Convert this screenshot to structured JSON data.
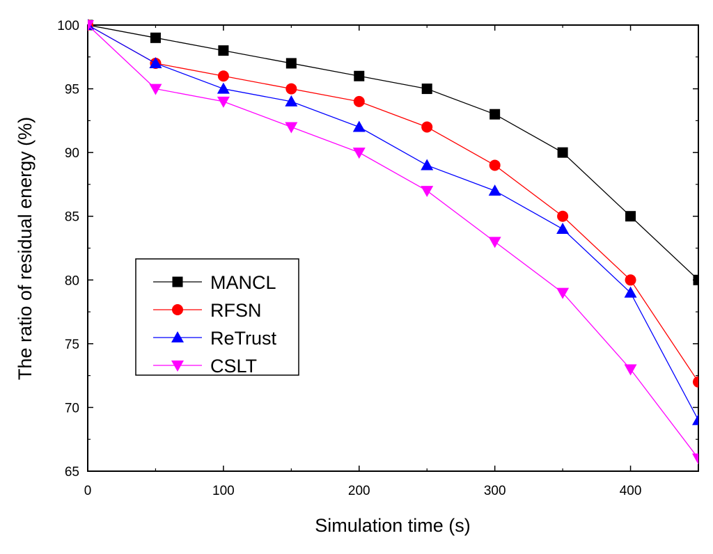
{
  "chart_data": {
    "type": "line",
    "title": "",
    "xlabel": "Simulation time (s)",
    "ylabel": "The ratio of residual energy (%)",
    "xlim": [
      0,
      450
    ],
    "ylim": [
      65,
      100
    ],
    "x_ticks": [
      0,
      100,
      200,
      300,
      400
    ],
    "x_tick_labels": [
      "0",
      "100",
      "200",
      "300",
      "400"
    ],
    "y_ticks": [
      65,
      70,
      75,
      80,
      85,
      90,
      95,
      100
    ],
    "y_tick_labels": [
      "65",
      "70",
      "75",
      "80",
      "85",
      "90",
      "95",
      "100"
    ],
    "x": [
      0,
      50,
      100,
      150,
      200,
      250,
      300,
      350,
      400,
      450
    ],
    "legend_position": "center-left",
    "grid": false,
    "series": [
      {
        "name": "MANCL",
        "color": "#000000",
        "marker": "square",
        "values": [
          100,
          99,
          98,
          97,
          96,
          95,
          93,
          90,
          85,
          80
        ]
      },
      {
        "name": "RFSN",
        "color": "#ff0000",
        "marker": "circle",
        "values": [
          100,
          97,
          96,
          95,
          94,
          92,
          89,
          85,
          80,
          72
        ]
      },
      {
        "name": "ReTrust",
        "color": "#0000ff",
        "marker": "triangle-up",
        "values": [
          100,
          97,
          95,
          94,
          92,
          89,
          87,
          84,
          79,
          69
        ]
      },
      {
        "name": "CSLT",
        "color": "#ff00ff",
        "marker": "triangle-down",
        "values": [
          100,
          95,
          94,
          92,
          90,
          87,
          83,
          79,
          73,
          66
        ]
      }
    ]
  }
}
